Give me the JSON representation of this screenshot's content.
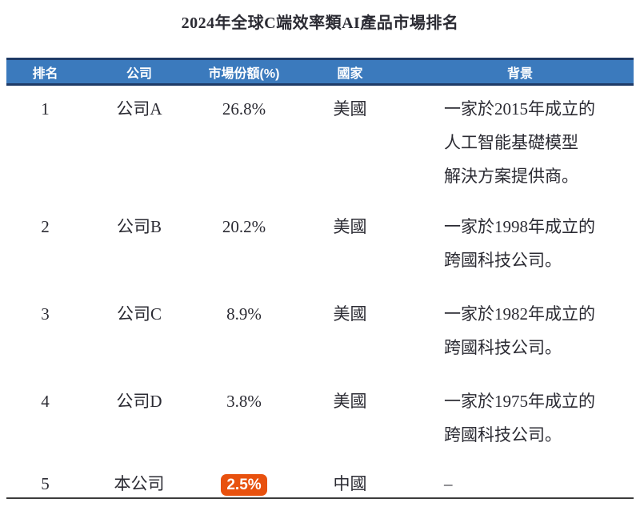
{
  "title": "2024年全球C端效率類AI產品市場排名",
  "table": {
    "headers": [
      "排名",
      "公司",
      "市場份額(%)",
      "國家",
      "背景"
    ],
    "rows": [
      {
        "rank": "1",
        "company": "公司A",
        "share": "26.8%",
        "country": "美國",
        "background_lines": [
          "一家於2015年成立的",
          "人工智能基礎模型",
          "解決方案提供商。"
        ],
        "share_highlighted": false
      },
      {
        "rank": "2",
        "company": "公司B",
        "share": "20.2%",
        "country": "美國",
        "background_lines": [
          "一家於1998年成立的",
          "跨國科技公司。"
        ],
        "share_highlighted": false
      },
      {
        "rank": "3",
        "company": "公司C",
        "share": "8.9%",
        "country": "美國",
        "background_lines": [
          "一家於1982年成立的",
          "跨國科技公司。"
        ],
        "share_highlighted": false
      },
      {
        "rank": "4",
        "company": "公司D",
        "share": "3.8%",
        "country": "美國",
        "background_lines": [
          "一家於1975年成立的",
          "跨國科技公司。"
        ],
        "share_highlighted": false
      },
      {
        "rank": "5",
        "company": "本公司",
        "share": "2.5%",
        "country": "中國",
        "background_lines": [
          "–"
        ],
        "share_highlighted": true
      }
    ]
  },
  "colors": {
    "header_bg": "#3B7ABD",
    "header_border": "#1E3A67",
    "highlight_bg": "#E8510E",
    "text": "#2B2B33",
    "bottom_border": "#3C3C3C"
  }
}
